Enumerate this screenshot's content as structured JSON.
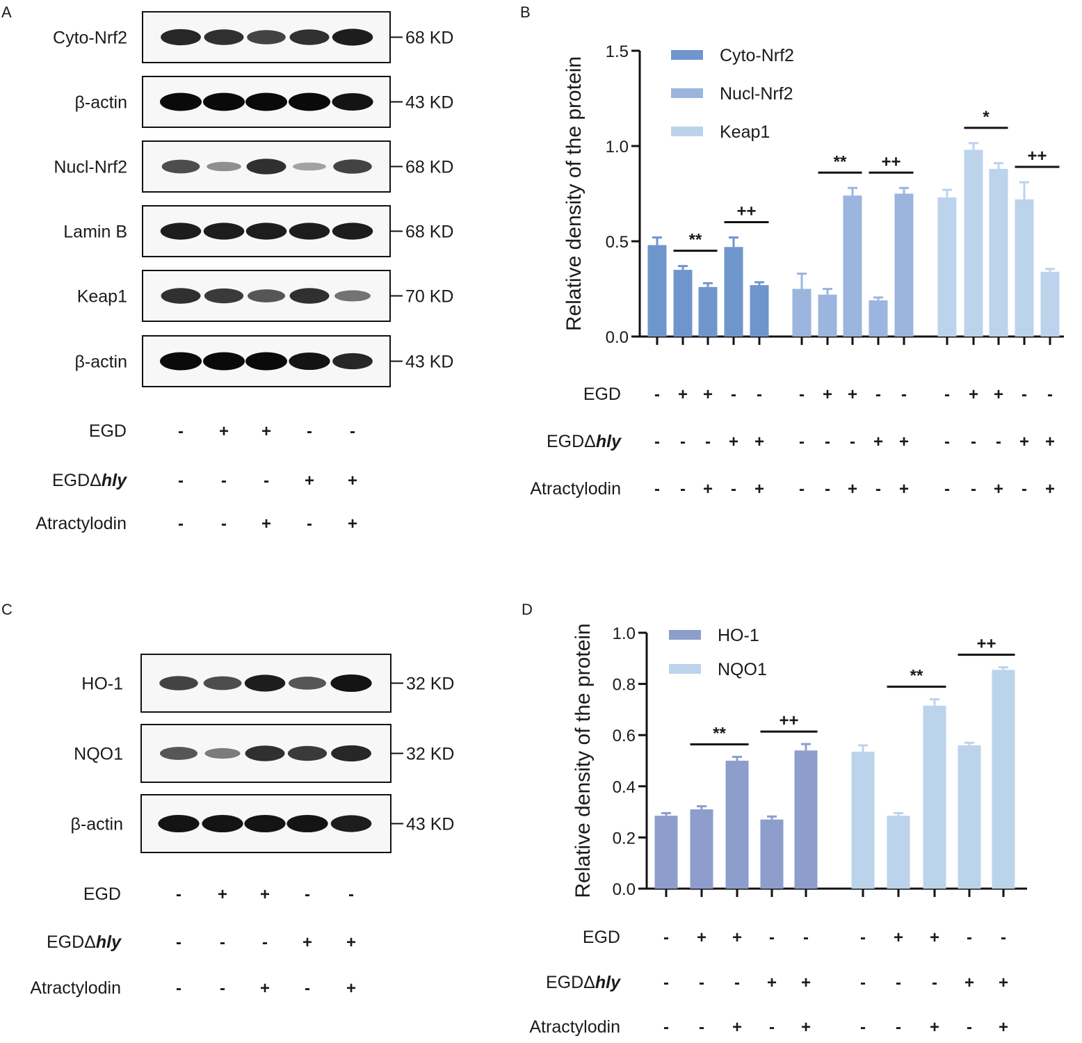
{
  "panel_letters": [
    "A",
    "B",
    "C",
    "D"
  ],
  "panel_a": {
    "blots": [
      {
        "label": "Cyto-Nrf2",
        "kd": "68 KD",
        "bands": [
          0.85,
          0.8,
          0.7,
          0.8,
          0.9
        ]
      },
      {
        "label": "β-actin",
        "kd": "43 KD",
        "bands": [
          1,
          1,
          1,
          1,
          0.95
        ]
      },
      {
        "label": "Nucl-Nrf2",
        "kd": "68 KD",
        "bands": [
          0.65,
          0.3,
          0.8,
          0.2,
          0.7
        ]
      },
      {
        "label": "Lamin B",
        "kd": "68 KD",
        "bands": [
          0.9,
          0.9,
          0.9,
          0.9,
          0.9
        ]
      },
      {
        "label": "Keap1",
        "kd": "70 KD",
        "bands": [
          0.8,
          0.75,
          0.6,
          0.8,
          0.45
        ]
      },
      {
        "label": "β-actin",
        "kd": "43 KD",
        "bands": [
          1,
          1,
          1,
          0.95,
          0.85
        ]
      }
    ]
  },
  "panel_c": {
    "blots": [
      {
        "label": "HO-1",
        "kd": "32 KD",
        "bands": [
          0.7,
          0.65,
          0.9,
          0.6,
          0.95
        ]
      },
      {
        "label": "NQO1",
        "kd": "32 KD",
        "bands": [
          0.6,
          0.4,
          0.8,
          0.75,
          0.85
        ]
      },
      {
        "label": "β-actin",
        "kd": "43 KD",
        "bands": [
          0.95,
          0.95,
          0.95,
          0.95,
          0.9
        ]
      }
    ]
  },
  "conditions_5": {
    "rows": [
      {
        "label": "EGD",
        "italic": "",
        "signs": [
          "-",
          "+",
          "+",
          "-",
          "-"
        ]
      },
      {
        "label": "EGDΔ",
        "italic": "hly",
        "signs": [
          "-",
          "-",
          "-",
          "+",
          "+"
        ]
      },
      {
        "label": "Atractylodin",
        "italic": "",
        "signs": [
          "-",
          "-",
          "+",
          "-",
          "+"
        ]
      }
    ]
  },
  "chart_data": [
    {
      "panel": "B",
      "type": "bar",
      "title": "",
      "xlabel": "",
      "ylabel": "Relative density of the protein",
      "ylim": [
        0,
        1.5
      ],
      "yticks": [
        "0.0",
        "0.5",
        "1.0",
        "1.5"
      ],
      "groups": [
        "-/-/-",
        "+/-/-",
        "+/-/+",
        "-/+/-",
        "-/+/+"
      ],
      "series": [
        {
          "name": "Cyto-Nrf2",
          "color": "#6f96cc",
          "values": [
            0.48,
            0.35,
            0.26,
            0.47,
            0.27
          ],
          "errors": [
            0.04,
            0.02,
            0.02,
            0.05,
            0.015
          ]
        },
        {
          "name": "Nucl-Nrf2",
          "color": "#9bb5de",
          "values": [
            0.25,
            0.22,
            0.74,
            0.19,
            0.75
          ],
          "errors": [
            0.08,
            0.03,
            0.04,
            0.015,
            0.03
          ]
        },
        {
          "name": "Keap1",
          "color": "#bcd3ec",
          "values": [
            0.73,
            0.98,
            0.88,
            0.72,
            0.34
          ],
          "errors": [
            0.04,
            0.035,
            0.03,
            0.09,
            0.015
          ]
        }
      ],
      "significance": [
        {
          "series": 0,
          "from": 1,
          "to": 2,
          "label": "**"
        },
        {
          "series": 0,
          "from": 3,
          "to": 4,
          "label": "++"
        },
        {
          "series": 1,
          "from": 1,
          "to": 2,
          "label": "**"
        },
        {
          "series": 1,
          "from": 3,
          "to": 4,
          "label": "++"
        },
        {
          "series": 2,
          "from": 1,
          "to": 2,
          "label": "*"
        },
        {
          "series": 2,
          "from": 3,
          "to": 4,
          "label": "++"
        }
      ]
    },
    {
      "panel": "D",
      "type": "bar",
      "title": "",
      "xlabel": "",
      "ylabel": "Relative density of the protein",
      "ylim": [
        0,
        1.0
      ],
      "yticks": [
        "0.0",
        "0.2",
        "0.4",
        "0.6",
        "0.8",
        "1.0"
      ],
      "groups": [
        "-/-/-",
        "+/-/-",
        "+/-/+",
        "-/+/-",
        "-/+/+"
      ],
      "series": [
        {
          "name": "HO-1",
          "color": "#8d9dcc",
          "values": [
            0.285,
            0.31,
            0.5,
            0.27,
            0.54
          ],
          "errors": [
            0.01,
            0.012,
            0.015,
            0.012,
            0.025
          ]
        },
        {
          "name": "NQO1",
          "color": "#bcd3ec",
          "values": [
            0.535,
            0.285,
            0.715,
            0.56,
            0.855
          ],
          "errors": [
            0.025,
            0.01,
            0.025,
            0.01,
            0.01
          ]
        }
      ],
      "significance": [
        {
          "series": 0,
          "from": 1,
          "to": 2,
          "label": "**"
        },
        {
          "series": 0,
          "from": 3,
          "to": 4,
          "label": "++"
        },
        {
          "series": 1,
          "from": 1,
          "to": 2,
          "label": "**"
        },
        {
          "series": 1,
          "from": 3,
          "to": 4,
          "label": "++"
        }
      ]
    }
  ]
}
